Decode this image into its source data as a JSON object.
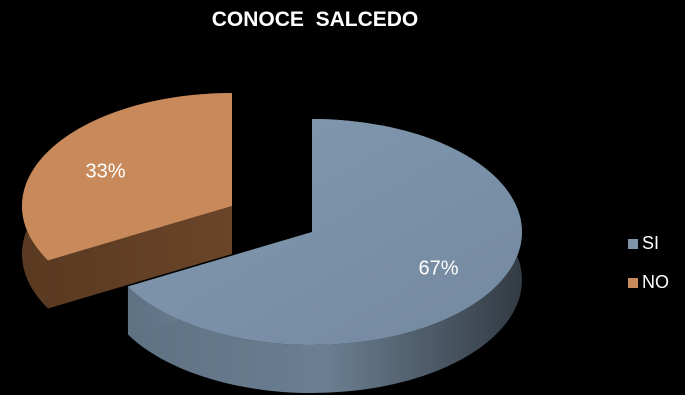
{
  "chart_data": {
    "type": "pie",
    "title": "CONOCE  SALCEDO",
    "categories": [
      "SI",
      "NO"
    ],
    "values": [
      67,
      33
    ],
    "data_labels": [
      "67%",
      "33%"
    ],
    "colors": {
      "SI": "#7D94AB",
      "NO": "#C98A5B"
    },
    "legend_placement": "right",
    "style": "3d-exploded"
  }
}
